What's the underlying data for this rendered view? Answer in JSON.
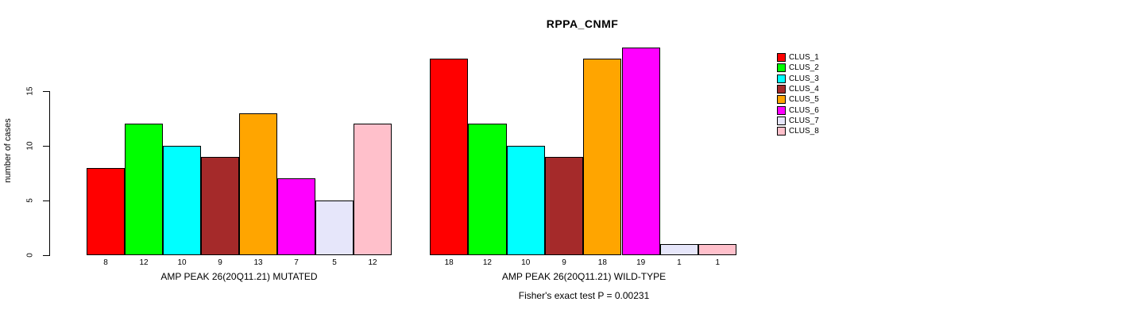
{
  "title": "RPPA_CNMF",
  "chart_data": {
    "type": "bar",
    "title": "RPPA_CNMF",
    "xlabel": "",
    "ylabel": "number of cases",
    "ylim": [
      0,
      15
    ],
    "yticks": [
      0,
      5,
      10,
      15
    ],
    "grid": false,
    "legend_position": "right",
    "bar_value_labels": true,
    "series_names": [
      "CLUS_1",
      "CLUS_2",
      "CLUS_3",
      "CLUS_4",
      "CLUS_5",
      "CLUS_6",
      "CLUS_7",
      "CLUS_8"
    ],
    "colors": [
      "#FF0000",
      "#00FF00",
      "#00FFFF",
      "#A52A2A",
      "#FFA500",
      "#FF00FF",
      "#E6E6FA",
      "#FFC0CB"
    ],
    "groups": [
      {
        "label": "AMP PEAK 26(20Q11.21) MUTATED",
        "values": [
          8,
          12,
          10,
          9,
          13,
          7,
          5,
          12
        ]
      },
      {
        "label": "AMP PEAK 26(20Q11.21) WILD-TYPE",
        "values": [
          18,
          12,
          10,
          9,
          18,
          19,
          1,
          1
        ]
      }
    ],
    "annotation": "Fisher's exact test P = 0.00231"
  },
  "legend": {
    "items": [
      {
        "label": "CLUS_1",
        "color": "#FF0000"
      },
      {
        "label": "CLUS_2",
        "color": "#00FF00"
      },
      {
        "label": "CLUS_3",
        "color": "#00FFFF"
      },
      {
        "label": "CLUS_4",
        "color": "#A52A2A"
      },
      {
        "label": "CLUS_5",
        "color": "#FFA500"
      },
      {
        "label": "CLUS_6",
        "color": "#FF00FF"
      },
      {
        "label": "CLUS_7",
        "color": "#E6E6FA"
      },
      {
        "label": "CLUS_8",
        "color": "#FFC0CB"
      }
    ]
  }
}
